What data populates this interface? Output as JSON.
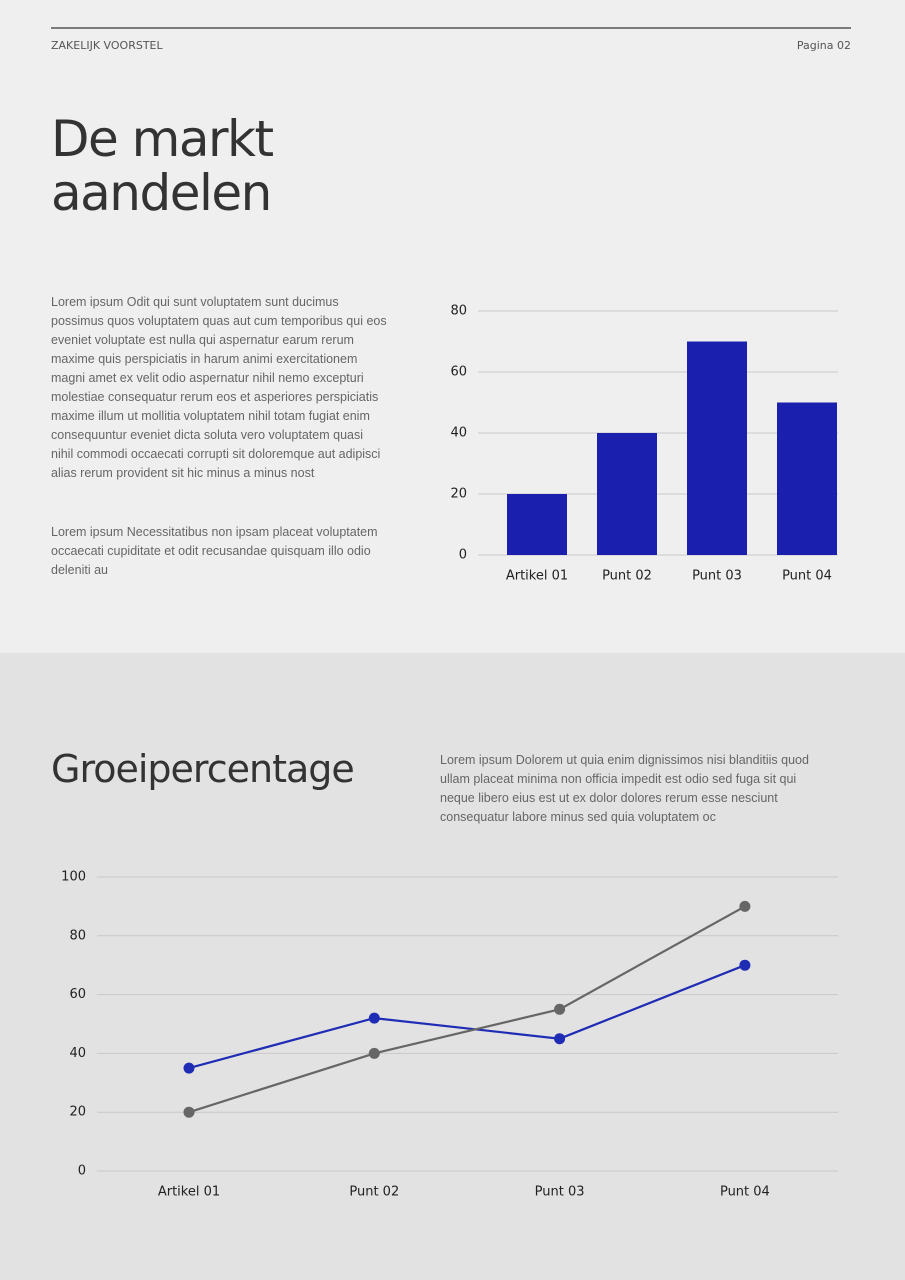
{
  "header": {
    "left": "ZAKELIJK VOORSTEL",
    "right": "Pagina 02"
  },
  "section1": {
    "title": [
      "De markt",
      "aandelen"
    ],
    "paragraphs": [
      [
        "Lorem ipsum Odit qui sunt voluptatem sunt ducimus",
        "possimus quos voluptatem quas aut cum temporibus qui eos",
        "eveniet voluptate est nulla qui aspernatur earum rerum",
        "maxime quis perspiciatis in harum animi exercitationem",
        "magni amet ex velit odio aspernatur nihil nemo excepturi",
        "molestiae consequatur rerum eos et asperiores perspiciatis",
        "maxime illum ut mollitia voluptatem nihil totam fugiat enim",
        "consequuntur eveniet dicta soluta vero voluptatem quasi",
        "nihil commodi occaecati corrupti sit doloremque aut adipisci",
        "alias rerum provident sit hic minus a minus nost"
      ],
      [
        "Lorem ipsum Necessitatibus non ipsam placeat voluptatem",
        "occaecati cupiditate et odit recusandae quisquam illo odio",
        "deleniti au"
      ]
    ]
  },
  "section2": {
    "title": "Groeipercentage",
    "paragraph": [
      "Lorem ipsum Dolorem ut quia enim dignissimos nisi blanditiis quod",
      "ullam placeat minima non officia impedit est odio sed fuga sit qui",
      "neque libero eius est ut ex dolor dolores rerum esse nesciunt",
      "consequatur labore minus sed quia voluptatem oc"
    ]
  },
  "chart_data": [
    {
      "type": "bar",
      "categories": [
        "Artikel 01",
        "Punt 02",
        "Punt 03",
        "Punt 04"
      ],
      "values": [
        20,
        40,
        70,
        50
      ],
      "color": "#1a1fae",
      "ylim": [
        0,
        80
      ],
      "yticks": [
        0,
        20,
        40,
        60,
        80
      ],
      "grid": true
    },
    {
      "type": "line",
      "categories": [
        "Artikel 01",
        "Punt 02",
        "Punt 03",
        "Punt 04"
      ],
      "series": [
        {
          "color": "#1f2db5",
          "values": [
            35,
            52,
            45,
            70
          ]
        },
        {
          "color": "#666666",
          "values": [
            20,
            40,
            55,
            90
          ]
        }
      ],
      "ylim": [
        0,
        100
      ],
      "yticks": [
        0,
        20,
        40,
        60,
        80,
        100
      ],
      "grid": true
    }
  ]
}
